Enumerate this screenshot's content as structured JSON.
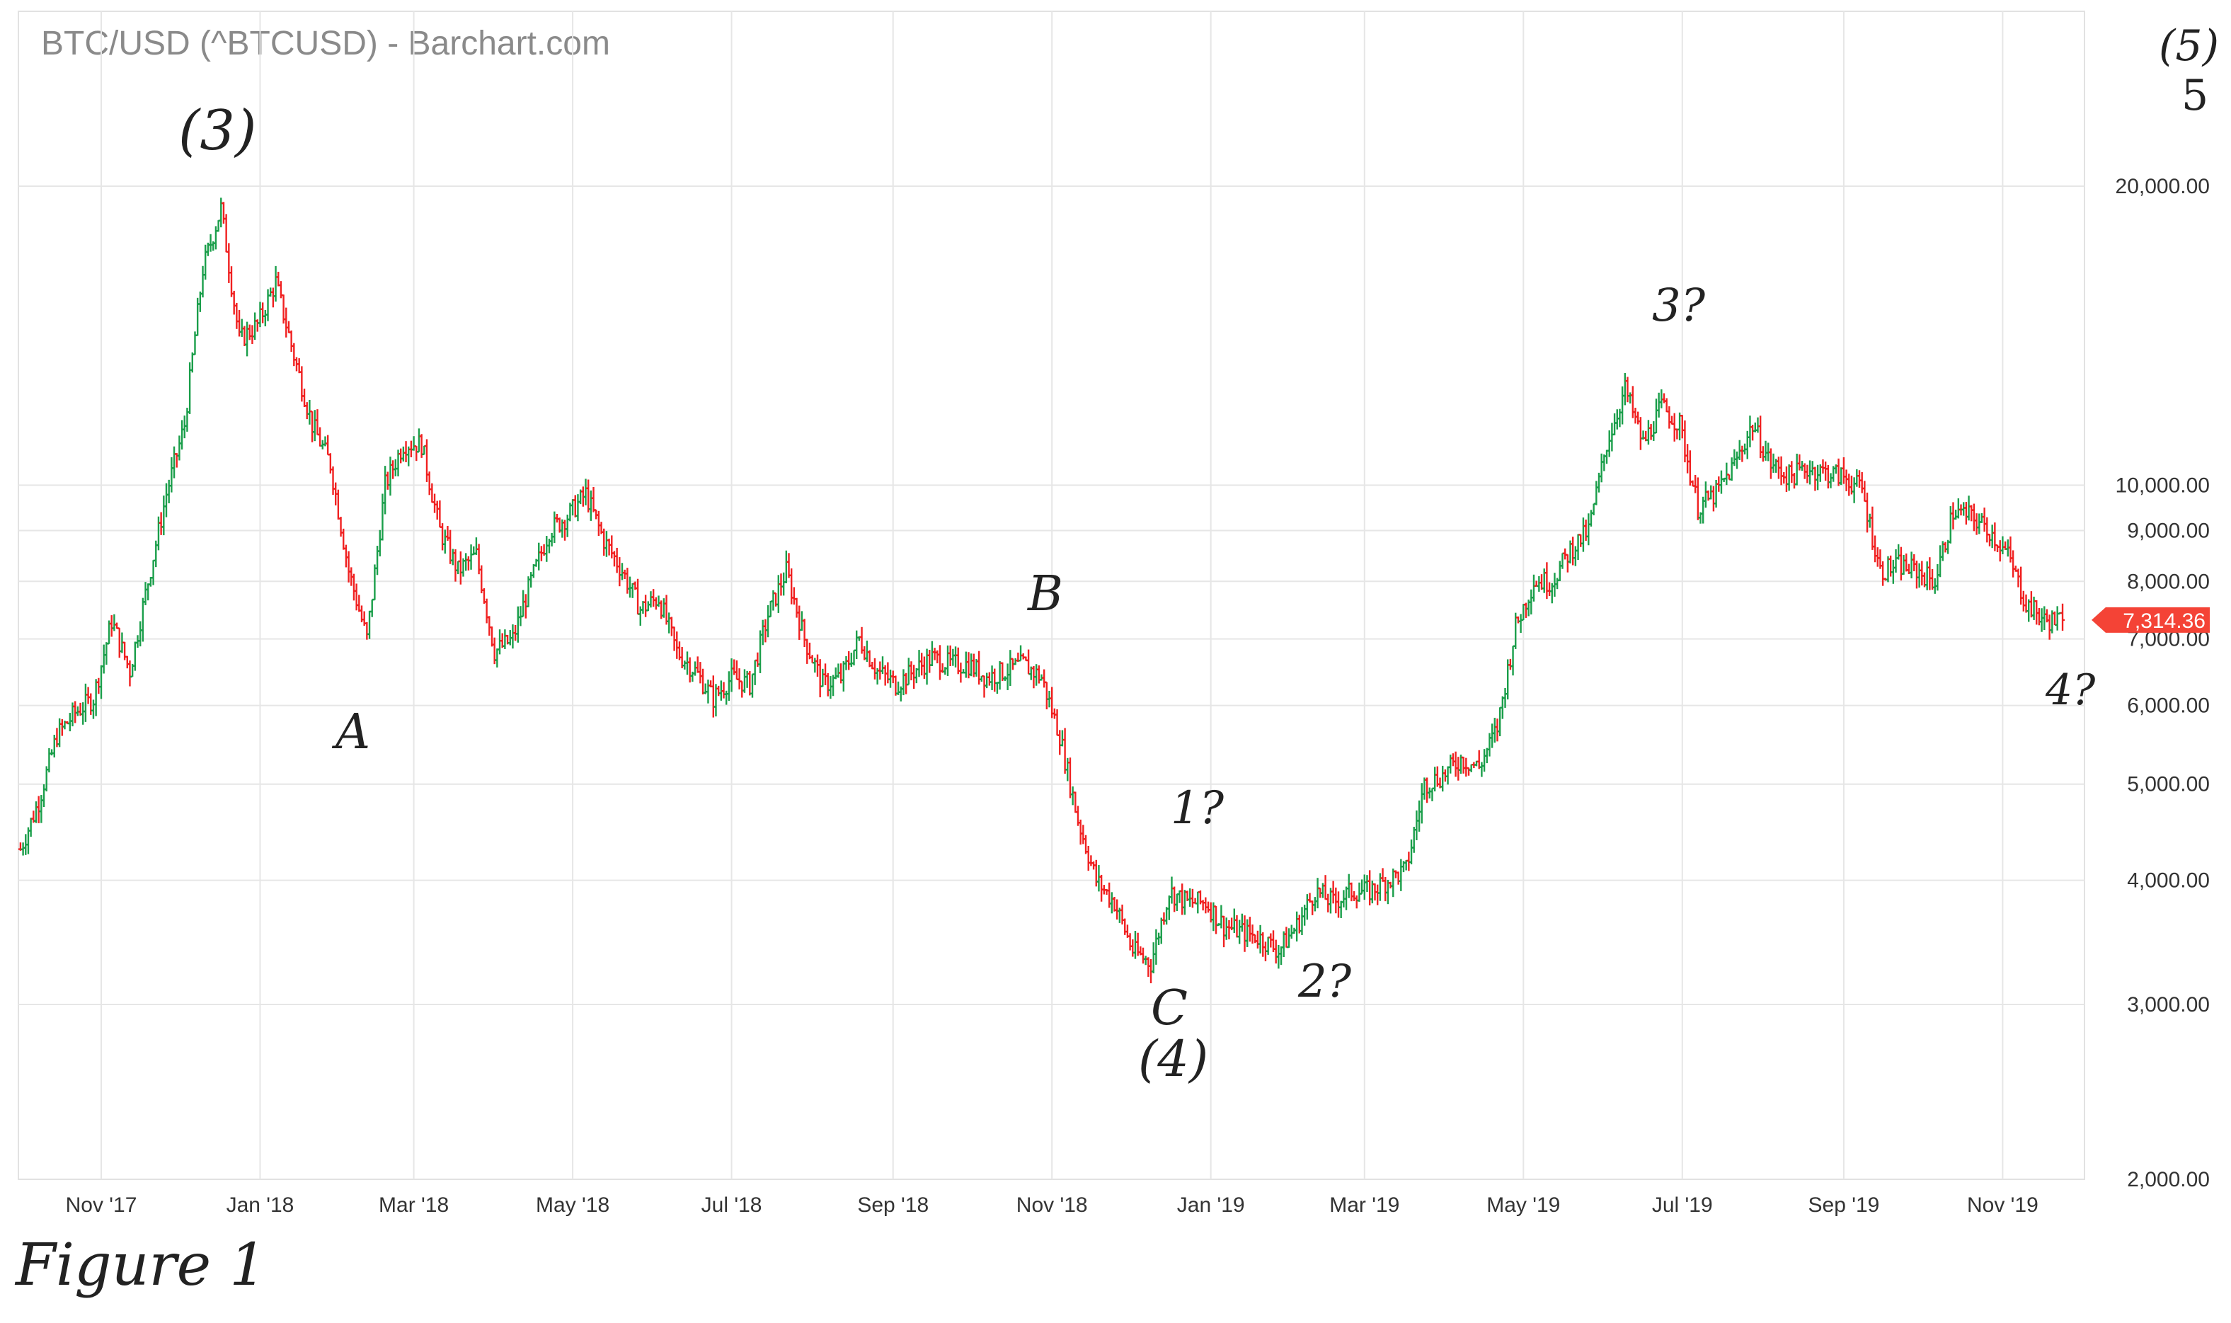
{
  "chart_data": {
    "type": "ohlc",
    "title": "BTC/USD (^BTCUSD) - Barchart.com",
    "y_scale": "log",
    "ylim": [
      2000,
      30000
    ],
    "y_ticks": [
      2000,
      3000,
      4000,
      5000,
      6000,
      7000,
      8000,
      9000,
      10000,
      20000
    ],
    "y_tick_labels": [
      "2,000.00",
      "3,000.00",
      "4,000.00",
      "5,000.00",
      "6,000.00",
      "7,000.00",
      "8,000.00",
      "9,000.00",
      "10,000.00",
      "20,000.00"
    ],
    "x_tick_labels": [
      "Nov '17",
      "Jan '18",
      "Mar '18",
      "May '18",
      "Jul '18",
      "Sep '18",
      "Nov '18",
      "Jan '19",
      "Mar '19",
      "May '19",
      "Jul '19",
      "Sep '19",
      "Nov '19"
    ],
    "x_tick_dates": [
      "2017-11-01",
      "2018-01-01",
      "2018-03-01",
      "2018-05-01",
      "2018-07-01",
      "2018-09-01",
      "2018-11-01",
      "2019-01-01",
      "2019-03-01",
      "2019-05-01",
      "2019-07-01",
      "2019-09-01",
      "2019-11-01"
    ],
    "grid": true,
    "start_date": "2017-10-01",
    "interval_days": 7,
    "weekly_closes": [
      4300,
      4800,
      5600,
      5900,
      6100,
      7300,
      6500,
      8000,
      9800,
      11500,
      16500,
      19000,
      14000,
      14500,
      16000,
      13500,
      11500,
      10500,
      8200,
      7000,
      10000,
      11000,
      11000,
      9000,
      8200,
      8500,
      6800,
      7000,
      8000,
      9000,
      9300,
      9800,
      8800,
      8200,
      7500,
      7700,
      6800,
      6500,
      6100,
      6400,
      6300,
      7400,
      8200,
      7000,
      6300,
      6400,
      7000,
      6500,
      6300,
      6500,
      6700,
      6600,
      6600,
      6400,
      6500,
      6600,
      6400,
      5600,
      4600,
      4000,
      3800,
      3400,
      3300,
      3900,
      3800,
      3800,
      3600,
      3550,
      3500,
      3400,
      3600,
      3900,
      3800,
      3900,
      3900,
      4000,
      4100,
      5000,
      5100,
      5300,
      5200,
      5700,
      7200,
      8000,
      8000,
      8600,
      9000,
      11000,
      12500,
      11000,
      12000,
      11500,
      9500,
      9800,
      10500,
      11500,
      10500,
      10200,
      10400,
      10300,
      10200,
      9900,
      8200,
      8300,
      8200,
      8000,
      9400,
      9300,
      9000,
      8500,
      7600,
      7300,
      7314
    ],
    "last_price": 7314.36,
    "last_price_label": "7,314.36",
    "up_color": "#1a9e4a",
    "down_color": "#f02020",
    "annotations": [
      "(3)",
      "A",
      "B",
      "C",
      "(4)",
      "1?",
      "2?",
      "3?",
      "4?",
      "(5)",
      "5"
    ],
    "caption": "Figure 1"
  }
}
